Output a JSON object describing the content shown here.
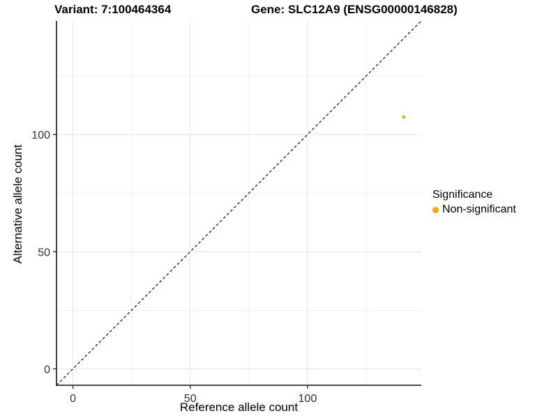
{
  "titles": {
    "variant": "Variant: 7:100464364",
    "gene": "Gene: SLC12A9 (ENSG00000146828)"
  },
  "chart_data": {
    "type": "scatter",
    "title": "",
    "xlabel": "Reference allele count",
    "ylabel": "Alternative allele count",
    "xlim": [
      -7,
      148.5
    ],
    "ylim": [
      -7,
      148.5
    ],
    "x_ticks": [
      0,
      50,
      100
    ],
    "y_ticks": [
      0,
      50,
      100
    ],
    "x_minor_ticks": [
      25,
      75,
      125
    ],
    "y_minor_ticks": [
      25,
      75,
      125
    ],
    "grid": true,
    "series": [
      {
        "name": "Non-significant",
        "color": "#FFA500",
        "points": [
          {
            "x": 141,
            "y": 107.5
          }
        ]
      }
    ],
    "identity_line": {
      "slope": 1,
      "intercept": 0,
      "style": "dashed"
    },
    "legend": {
      "position": "right",
      "title": "Significance",
      "items": [
        {
          "label": "Non-significant",
          "color": "#FFA500"
        }
      ]
    },
    "colors": {
      "point": "#FFA500",
      "grid_major": "#e4e4e4",
      "grid_minor": "#f1f1f1",
      "axis_line": "#2f2f2f",
      "tick_mark": "#333333",
      "tick_label": "#303030",
      "dashed_line": "#1a1a1a",
      "background": "#ffffff"
    }
  }
}
